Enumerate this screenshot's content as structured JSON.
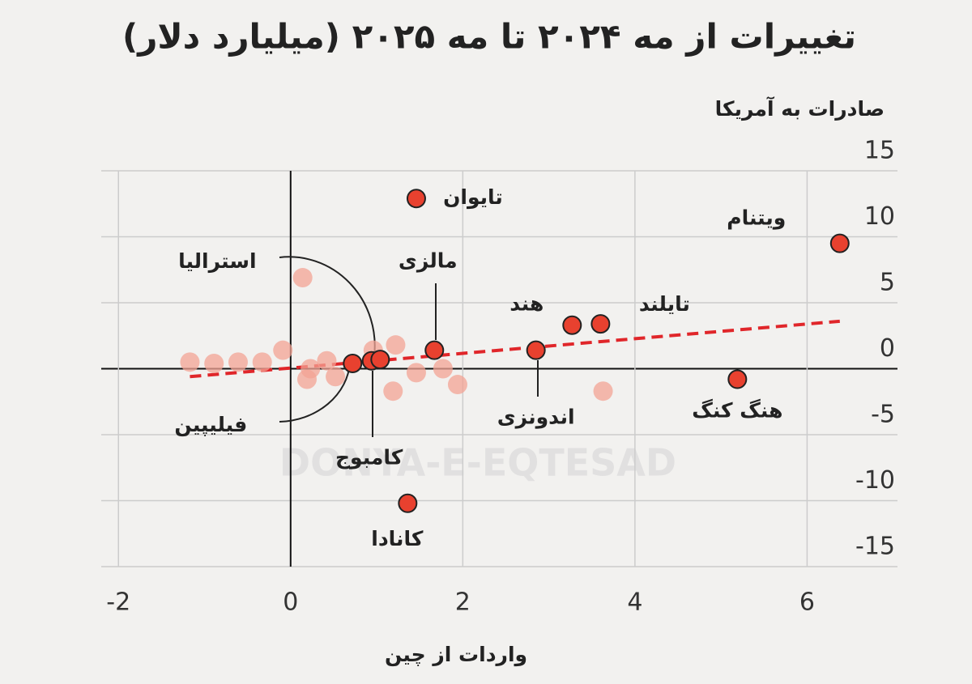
{
  "chart_data": {
    "type": "scatter",
    "title": "تغییرات از مه ۲۰۲۴ تا مه ۲۰۲۵ (میلیارد دلار)",
    "y_label": "صادرات به آمریکا",
    "x_label": "واردات از چین",
    "watermark": "DONYA-E-EQTESAD",
    "xlim": [
      -2.2,
      7.05
    ],
    "ylim": [
      -15,
      15
    ],
    "xticks": [
      -2,
      0,
      2,
      4,
      6
    ],
    "yticks": [
      15,
      10,
      5,
      0,
      -5,
      -10,
      -15
    ],
    "grid": true,
    "series": [
      {
        "color": "#f3a394",
        "x": [
          0.14,
          -1.17,
          -0.89,
          -0.61,
          -0.33,
          -0.09,
          0.23,
          0.42,
          0.96,
          1.22,
          1.46,
          1.77,
          1.94,
          1.19,
          3.63,
          0.19,
          0.52
        ],
        "values": [
          6.9,
          0.5,
          0.4,
          0.5,
          0.5,
          1.4,
          0,
          0.6,
          1.4,
          1.8,
          -0.3,
          0,
          -1.2,
          -1.7,
          -1.7,
          -0.8,
          -0.6
        ]
      },
      {
        "color": "#e8412f",
        "labels": [
          "تایوان",
          "ویتنام",
          "مالزی",
          "هند",
          "تایلند",
          "اندونزی",
          "هنگ کنگ",
          "کانادا",
          "کامبوج",
          "فیلیپین",
          "استرالیا"
        ],
        "x": [
          1.46,
          6.38,
          1.67,
          3.27,
          3.6,
          2.85,
          5.19,
          1.36,
          0.94,
          0.72,
          1.04
        ],
        "values": [
          12.9,
          9.5,
          1.4,
          3.3,
          3.4,
          1.4,
          -0.8,
          -10.2,
          0.6,
          0.4,
          0.7
        ]
      }
    ],
    "trend_line": {
      "color": "#e0262a",
      "x": [
        -1.17,
        6.38
      ],
      "values": [
        -0.6,
        3.6
      ]
    }
  }
}
